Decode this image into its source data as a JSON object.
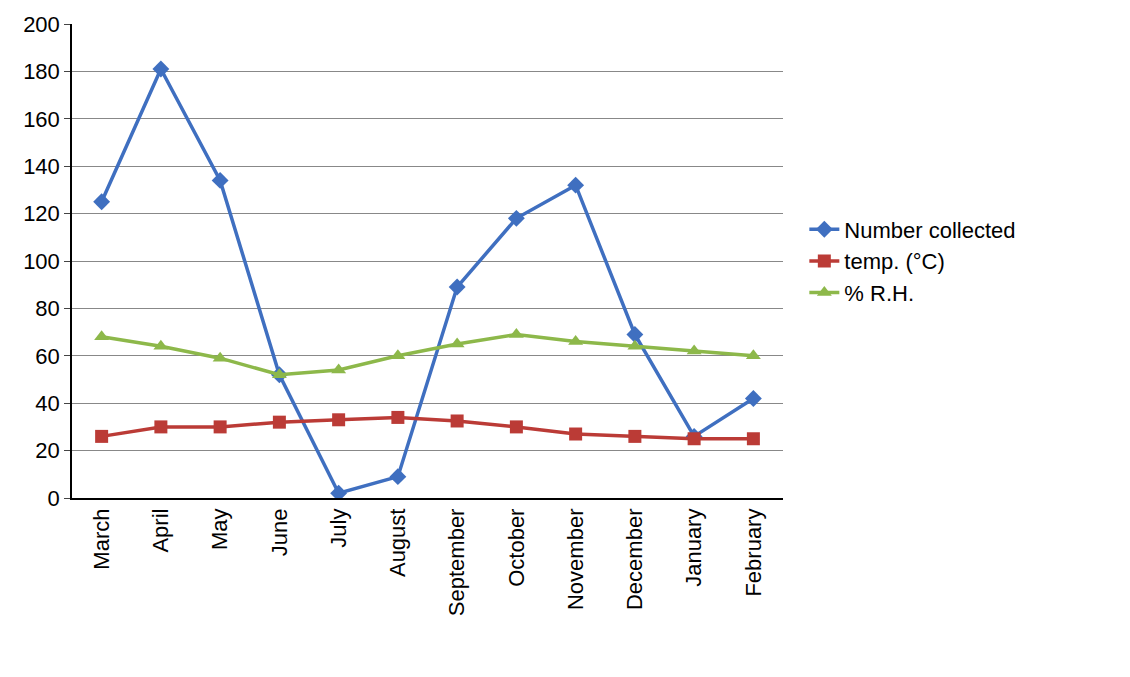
{
  "chart_data": {
    "type": "line",
    "categories": [
      "March",
      "April",
      "May",
      "June",
      "July",
      "August",
      "September",
      "October",
      "November",
      "December",
      "January",
      "February"
    ],
    "series": [
      {
        "name": "Number collected",
        "color": "#3f6fc0",
        "marker": "diamond",
        "values": [
          125,
          181,
          134,
          52,
          2,
          9,
          89,
          118,
          132,
          69,
          26,
          42
        ]
      },
      {
        "name": "temp. (°C)",
        "color": "#bb3b36",
        "marker": "square",
        "values": [
          26,
          30,
          30,
          32,
          33,
          34,
          32.5,
          30,
          27,
          26,
          25,
          25
        ]
      },
      {
        "name": "% R.H.",
        "color": "#8db84a",
        "marker": "triangle-up",
        "values": [
          68,
          64,
          59,
          52,
          54,
          60,
          65,
          69,
          66,
          64,
          62,
          60
        ]
      }
    ],
    "ylim": [
      0,
      200
    ],
    "yticks": [
      0,
      20,
      40,
      60,
      80,
      100,
      120,
      140,
      160,
      180,
      200
    ],
    "grid": true,
    "legend": "right"
  }
}
